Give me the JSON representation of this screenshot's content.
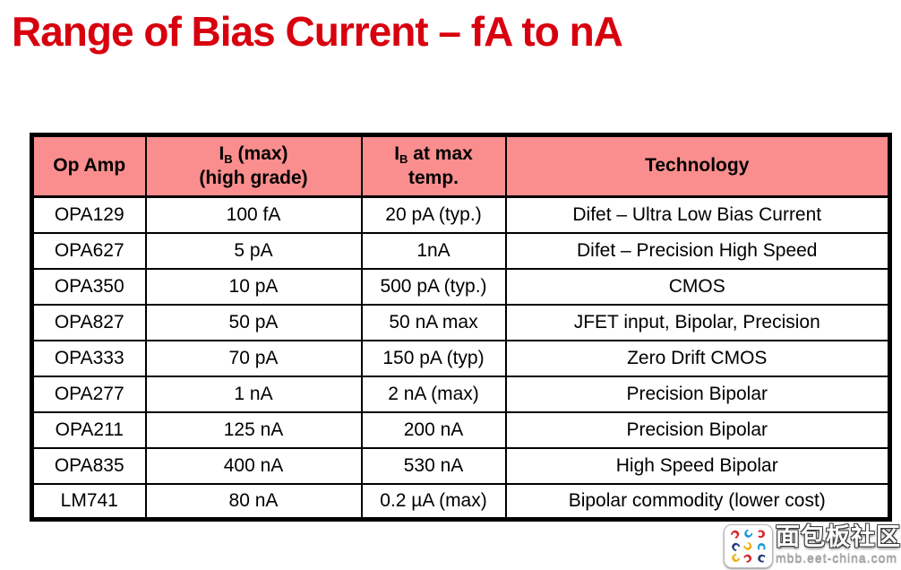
{
  "title": "Range of Bias Current – fA to nA",
  "colors": {
    "title_red": "#d8000e",
    "header_bg": "#fa8e8e",
    "table_border": "#000000",
    "page_bg": "#ffffff"
  },
  "table": {
    "headers": {
      "op_amp": "Op Amp",
      "ib_max": {
        "pre": "I",
        "sub": "B",
        "post": " (max)",
        "line2": "(high grade)"
      },
      "ib_at_max_temp": {
        "pre": "I",
        "sub": "B",
        "post": " at max",
        "line2": "temp."
      },
      "technology": "Technology"
    },
    "rows": [
      [
        "OPA129",
        "100 fA",
        "20 pA (typ.)",
        "Difet – Ultra Low Bias Current"
      ],
      [
        "OPA627",
        "5 pA",
        "1nA",
        "Difet – Precision High Speed"
      ],
      [
        "OPA350",
        "10 pA",
        "500 pA (typ.)",
        "CMOS"
      ],
      [
        "OPA827",
        "50 pA",
        "50 nA max",
        "JFET input, Bipolar, Precision"
      ],
      [
        "OPA333",
        "70 pA",
        "150 pA (typ)",
        "Zero Drift CMOS"
      ],
      [
        "OPA277",
        "1 nA",
        "2 nA (max)",
        "Precision Bipolar"
      ],
      [
        "OPA211",
        "125 nA",
        "200 nA",
        "Precision Bipolar"
      ],
      [
        "OPA835",
        "400 nA",
        "530 nA",
        "High Speed Bipolar"
      ],
      [
        "LM741",
        "80 nA",
        "0.2 µA (max)",
        "Bipolar commodity (lower cost)"
      ]
    ]
  },
  "watermark": {
    "site_name": "面包板社区",
    "site_url": "mbb.eet-china.com",
    "logo_glyph": "c",
    "logo_cells": [
      "#d6232b",
      "#1b9bd7",
      "#d6232b",
      "#273a7e",
      "#f0af13",
      "#1b9bd7",
      "#f0af13",
      "#d6232b",
      "#273a7e"
    ]
  }
}
